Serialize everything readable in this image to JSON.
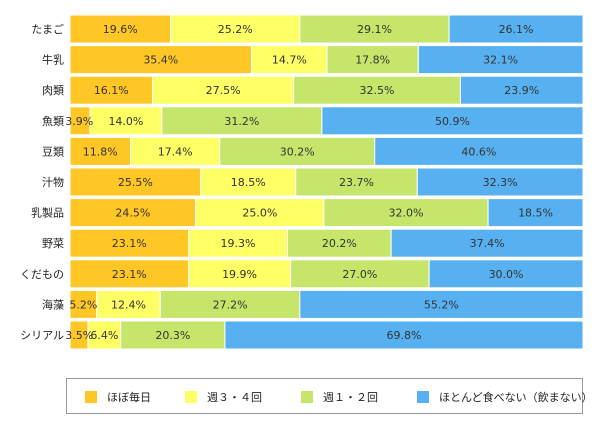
{
  "chart_data": {
    "type": "bar",
    "orientation": "horizontal",
    "stacked": "percent",
    "categories": [
      "たまご",
      "牛乳",
      "肉類",
      "魚類",
      "豆類",
      "汁物",
      "乳製品",
      "野菜",
      "くだもの",
      "海藻",
      "シリアル"
    ],
    "series": [
      {
        "name": "ほぼ毎日",
        "color": "#FFC726",
        "values": [
          19.6,
          35.4,
          16.1,
          3.9,
          11.8,
          25.5,
          24.5,
          23.1,
          23.1,
          5.2,
          3.5
        ]
      },
      {
        "name": "週３・４回",
        "color": "#FFFF66",
        "values": [
          25.2,
          14.7,
          27.5,
          14.0,
          17.4,
          18.5,
          25.0,
          19.3,
          19.9,
          12.4,
          6.4
        ]
      },
      {
        "name": "週１・２回",
        "color": "#C5E66B",
        "values": [
          29.1,
          17.8,
          32.5,
          31.2,
          30.2,
          23.7,
          32.0,
          20.2,
          27.0,
          27.2,
          20.3
        ]
      },
      {
        "name": "ほとんど食べない（飲まない）",
        "color": "#57B1F0",
        "values": [
          26.1,
          32.1,
          23.9,
          50.9,
          40.6,
          32.3,
          18.5,
          37.4,
          30.0,
          55.2,
          69.8
        ]
      }
    ],
    "value_labels": [
      [
        "19.6%",
        "25.2%",
        "29.1%",
        "26.1%"
      ],
      [
        "35.4%",
        "14.7%",
        "17.8%",
        "32.1%"
      ],
      [
        "16.1%",
        "27.5%",
        "32.5%",
        "23.9%"
      ],
      [
        "3.9%",
        "14.0%",
        "31.2%",
        "50.9%"
      ],
      [
        "11.8%",
        "17.4%",
        "30.2%",
        "40.6%"
      ],
      [
        "25.5%",
        "18.5%",
        "23.7%",
        "32.3%"
      ],
      [
        "24.5%",
        "25.0%",
        "32.0%",
        "18.5%"
      ],
      [
        "23.1%",
        "19.3%",
        "20.2%",
        "37.4%"
      ],
      [
        "23.1%",
        "19.9%",
        "27.0%",
        "30.0%"
      ],
      [
        "5.2%",
        "12.4%",
        "27.2%",
        "55.2%"
      ],
      [
        "3.5%",
        "6.4%",
        "20.3%",
        "69.8%"
      ]
    ],
    "xlim": [
      0,
      100
    ],
    "legend_position": "bottom",
    "grid": false
  }
}
